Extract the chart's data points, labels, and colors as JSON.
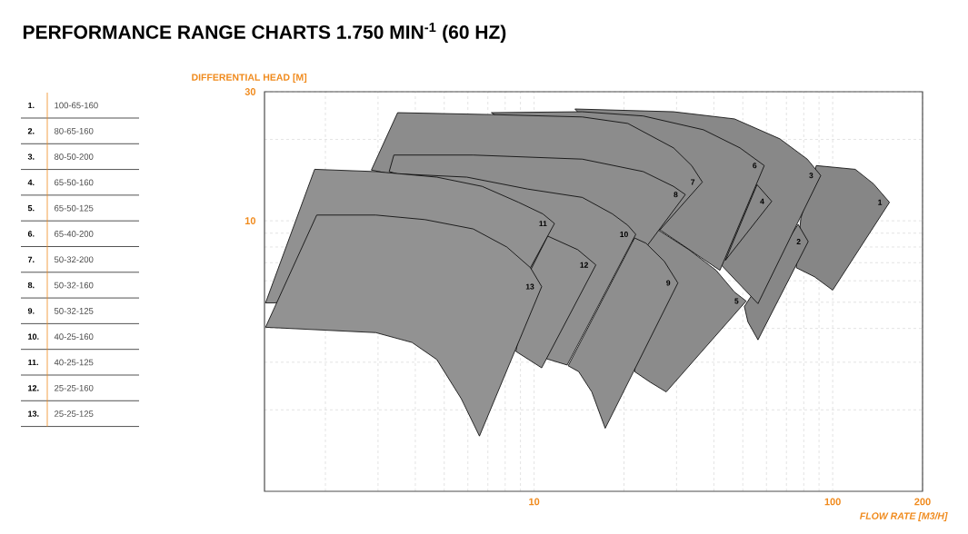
{
  "chart_data": {
    "type": "area",
    "title": "PERFORMANCE RANGE CHARTS  1.750 MIN$^{-1}$ (60 HZ)",
    "xlabel": "FLOW RATE [M3/H]",
    "ylabel": "DIFFERENTIAL HEAD [M]",
    "log": "xy",
    "grid": true,
    "xlim": [
      1.25,
      200
    ],
    "ylim": [
      1,
      30
    ],
    "xticks": [
      {
        "value": 2,
        "label": null
      },
      {
        "value": 3,
        "label": null
      },
      {
        "value": 4,
        "label": null
      },
      {
        "value": 5,
        "label": null
      },
      {
        "value": 6,
        "label": null
      },
      {
        "value": 7,
        "label": null
      },
      {
        "value": 8,
        "label": null
      },
      {
        "value": 9,
        "label": null
      },
      10,
      {
        "value": 20,
        "label": null
      },
      {
        "value": 30,
        "label": null
      },
      {
        "value": 40,
        "label": null
      },
      {
        "value": 50,
        "label": null
      },
      {
        "value": 60,
        "label": null
      },
      {
        "value": 70,
        "label": null
      },
      {
        "value": 80,
        "label": null
      },
      {
        "value": 90,
        "label": null
      },
      100,
      200
    ],
    "yticks": [
      {
        "value": 2,
        "label": null
      },
      {
        "value": 3,
        "label": null
      },
      {
        "value": 4,
        "label": null
      },
      {
        "value": 5,
        "label": null
      },
      {
        "value": 6,
        "label": null
      },
      {
        "value": 7,
        "label": null
      },
      {
        "value": 8,
        "label": null
      },
      {
        "value": 9,
        "label": null
      },
      10,
      {
        "value": 20,
        "label": null
      },
      30
    ],
    "annotations": [
      "1.",
      "100-65-160",
      "2.",
      "80-65-160",
      "3.",
      "80-50-200",
      "4.",
      "65-50-160",
      "5.",
      "65-50-125",
      "6.",
      "65-40-200",
      "7.",
      "50-32-200",
      "8.",
      "50-32-160",
      "9.",
      "50-32-125",
      "10.",
      "40-25-160",
      "11.",
      "40-25-125",
      "12.",
      "25-25-160",
      "13.",
      "25-25-125"
    ],
    "series": [
      {
        "name": "1",
        "color": "#868686",
        "x": [
          78.2,
          88.1,
          119,
          137,
          155,
          100,
          86.9,
          75.5
        ],
        "values": [
          10.2,
          16.0,
          15.5,
          13.7,
          11.7,
          5.54,
          6.21,
          6.71
        ]
      },
      {
        "name": "2",
        "color": "#878787",
        "x": [
          76.6,
          82.8,
          56.2,
          52.0,
          50.6
        ],
        "values": [
          9.7,
          8.38,
          3.63,
          4.23,
          4.82
        ]
      },
      {
        "name": "3",
        "color": "#888888",
        "x": [
          13.7,
          29.3,
          46.9,
          66.5,
          82.2,
          91.2,
          56.2,
          44.6
        ],
        "values": [
          25.9,
          25.3,
          23.8,
          20.1,
          16.9,
          14.7,
          4.94,
          6.46
        ]
      },
      {
        "name": "4",
        "color": "#898989",
        "x": [
          55.8,
          62.5,
          43.7
        ],
        "values": [
          13.6,
          11.8,
          7.14
        ]
      },
      {
        "name": "6",
        "color": "#8a8a8a",
        "x": [
          7.19,
          14.5,
          23.2,
          36.9,
          48.9,
          59.0,
          41.9,
          26.4
        ],
        "values": [
          25.1,
          25.3,
          24.4,
          21.7,
          18.6,
          16.0,
          6.56,
          9.26
        ]
      },
      {
        "name": "5",
        "color": "#8b8b8b",
        "x": [
          26.0,
          33.0,
          40.7,
          46.9,
          51.3,
          27.7,
          24.5,
          21.7,
          23.9
        ],
        "values": [
          9.26,
          7.82,
          6.56,
          5.45,
          5.05,
          2.33,
          2.53,
          2.77,
          8.19
        ]
      },
      {
        "name": "7",
        "color": "#8c8c8c",
        "x": [
          3.49,
          7.19,
          14.5,
          20.6,
          29.3,
          33.7,
          36.6,
          26.4,
          2.85
        ],
        "values": [
          25.1,
          24.7,
          24.2,
          22.9,
          18.6,
          16.0,
          13.9,
          9.26,
          15.4
        ]
      },
      {
        "name": "8",
        "color": "#8d8d8d",
        "x": [
          3.39,
          6.25,
          14.5,
          23.2,
          29.3,
          32.1,
          24.0,
          3.27
        ],
        "values": [
          17.5,
          17.5,
          16.9,
          15.2,
          13.4,
          12.5,
          8.13,
          15.2
        ]
      },
      {
        "name": "9",
        "color": "#8e8e8e",
        "x": [
          21.7,
          23.7,
          27.3,
          30.3,
          17.3,
          15.6,
          14.1,
          13.0
        ],
        "values": [
          8.64,
          8.26,
          7.08,
          5.89,
          1.71,
          2.33,
          2.77,
          2.91
        ]
      },
      {
        "name": "10",
        "color": "#8f8f8f",
        "x": [
          3.56,
          5.95,
          9.52,
          14.5,
          18.3,
          20.6,
          21.9,
          12.9,
          11.0
        ],
        "values": [
          14.9,
          14.5,
          13.1,
          12.2,
          10.6,
          9.62,
          8.91,
          2.93,
          3.09
        ]
      },
      {
        "name": "12",
        "color": "#909090",
        "x": [
          11.1,
          14.0,
          16.1,
          10.6,
          8.69,
          9.79
        ],
        "values": [
          8.78,
          7.82,
          6.87,
          2.86,
          3.29,
          6.66
        ]
      },
      {
        "name": "11",
        "color": "#919191",
        "x": [
          1.84,
          2.95,
          4.72,
          6.7,
          8.87,
          10.7,
          11.7,
          9.72,
          1.35,
          1.26
        ],
        "values": [
          15.5,
          15.2,
          14.5,
          13.4,
          11.7,
          10.6,
          9.77,
          6.71,
          4.97,
          4.97
        ]
      },
      {
        "name": "13",
        "color": "#929292",
        "x": [
          1.87,
          2.95,
          4.31,
          6.25,
          8.1,
          9.72,
          10.6,
          6.56,
          5.7,
          4.72,
          3.9,
          2.95,
          1.26
        ],
        "values": [
          10.5,
          10.5,
          10.1,
          9.33,
          8.0,
          6.71,
          5.71,
          1.6,
          2.2,
          3.07,
          3.55,
          3.86,
          4.04
        ]
      }
    ]
  }
}
